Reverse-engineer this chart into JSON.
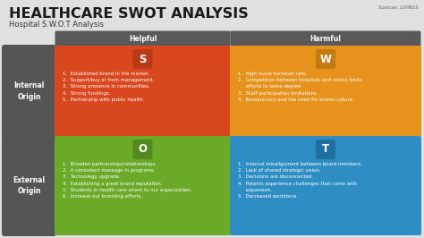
{
  "title": "HEALTHCARE SWOT ANALYSIS",
  "subtitle": "Hospital S.W.O.T Analysis",
  "source": "Sources: LIVINUS",
  "bg_color": "#e0e0e0",
  "header_helpful": "Helpful",
  "header_harmful": "Harmful",
  "header_bg": "#595959",
  "header_text_color": "#ffffff",
  "row_labels": [
    "Internal\nOrigin",
    "External\nOrigin"
  ],
  "row_label_bg": "#555555",
  "row_label_text": "#ffffff",
  "quadrants": {
    "S": {
      "letter": "S",
      "color": "#d9471f",
      "letter_bg": "#b83a16",
      "items": [
        "1.  Established brand in the market.",
        "2.  Support/buy-in from management.",
        "3.  Strong presence in communities.",
        "4.  Strong fundings.",
        "5.  Partnership with public health."
      ]
    },
    "W": {
      "letter": "W",
      "color": "#e8921e",
      "letter_bg": "#c47a12",
      "items": [
        "1.  High nurse turnover rate.",
        "2.  Competition between hospitals and clinics limits\n     efforts to some degree.",
        "3.  Staff participation limitations.",
        "4.  Bureaucracy and the need for brand culture."
      ]
    },
    "O": {
      "letter": "O",
      "color": "#6aaa28",
      "letter_bg": "#538a1e",
      "items": [
        "1.  Broaden partnerships/relationships.",
        "2.  A consistent message in programs.",
        "3.  Technology upgrade.",
        "4.  Establishing a great brand reputation.",
        "5.  Students in health care orient to our organization.",
        "6.  Increase our branding efforts."
      ]
    },
    "T": {
      "letter": "T",
      "color": "#2e8ec4",
      "letter_bg": "#1f6fa0",
      "items": [
        "1.  Internal misalignment between board members.",
        "2.  Lack of shared strategic vision.",
        "3.  Decisions are disconnected.",
        "4.  Patents experience challenges that come with\n     expansion.",
        "5.  Decreased workforce."
      ]
    }
  }
}
